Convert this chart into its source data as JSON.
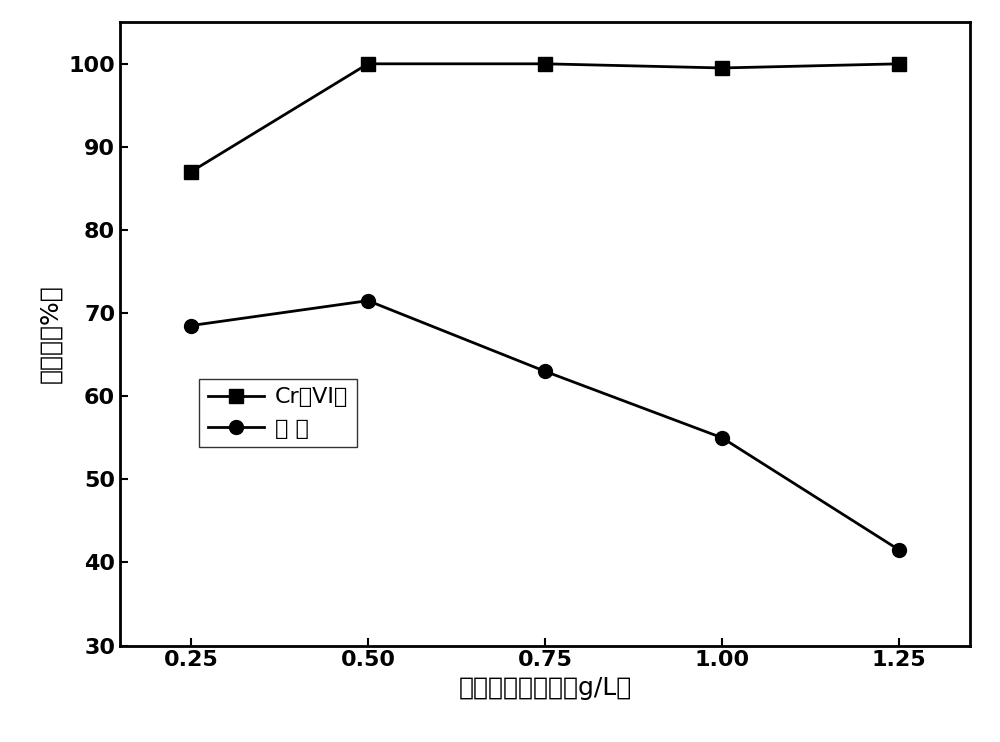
{
  "x": [
    0.25,
    0.5,
    0.75,
    1.0,
    1.25
  ],
  "cr_vi": [
    87,
    100,
    100,
    99.5,
    100
  ],
  "phenol": [
    68.5,
    71.5,
    63,
    55,
    41.5
  ],
  "xlabel": "零价铁的投加量（g/L）",
  "ylabel": "去除率（%）",
  "legend_cr": "Cr（VI）",
  "legend_phenol": "苯 酚",
  "xlim": [
    0.15,
    1.35
  ],
  "ylim": [
    30,
    105
  ],
  "xticks": [
    0.25,
    0.5,
    0.75,
    1.0,
    1.25
  ],
  "yticks": [
    30,
    40,
    50,
    60,
    70,
    80,
    90,
    100
  ],
  "line_color": "#000000",
  "marker_square": "s",
  "marker_circle": "o",
  "marker_size": 10,
  "linewidth": 2,
  "xlabel_fontsize": 18,
  "ylabel_fontsize": 18,
  "tick_fontsize": 16,
  "legend_fontsize": 16,
  "background_color": "#ffffff"
}
